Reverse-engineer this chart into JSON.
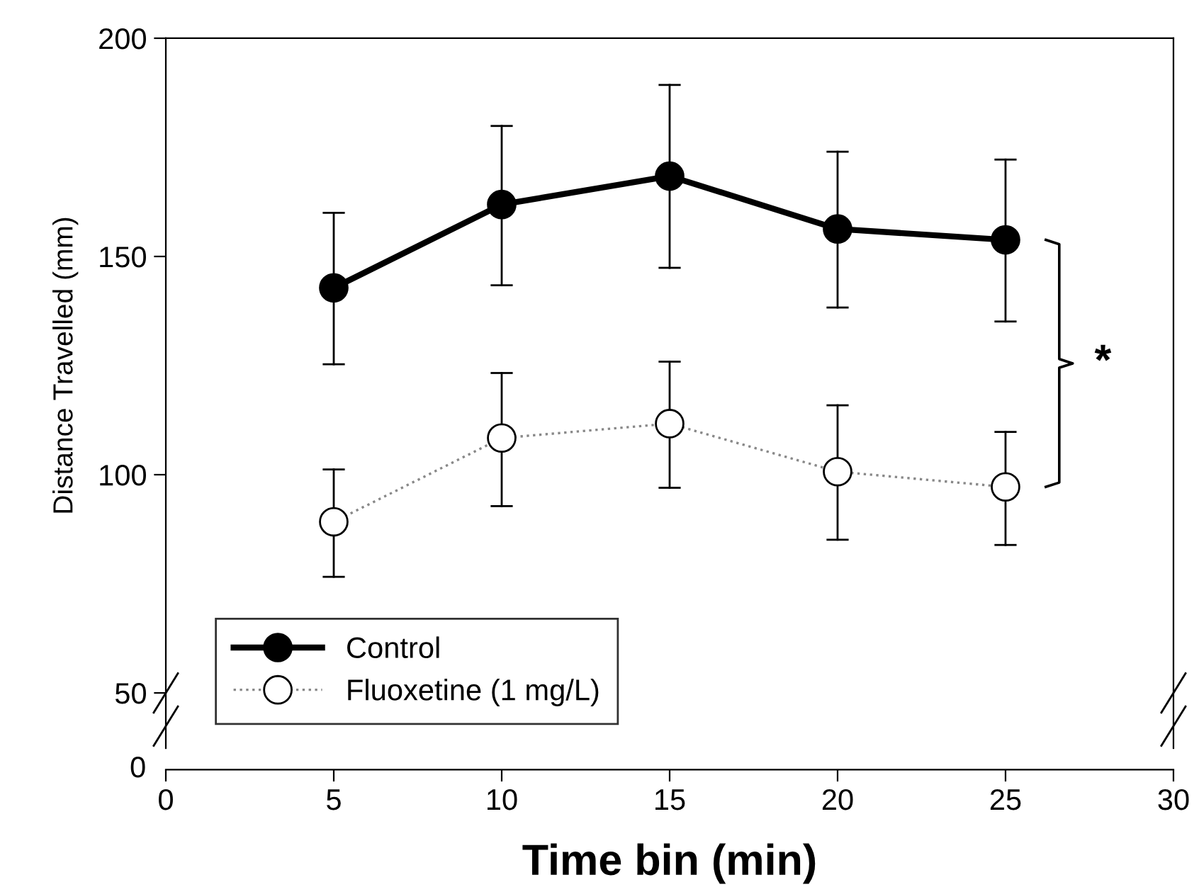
{
  "chart_data": {
    "type": "line",
    "ylabel": "Distance Travelled (mm)",
    "xlabel": "Time bin (min)",
    "x": [
      5,
      10,
      15,
      20,
      25
    ],
    "xlim": [
      0,
      30
    ],
    "xticks": [
      0,
      5,
      10,
      15,
      20,
      25,
      30
    ],
    "ylim": [
      50,
      200
    ],
    "yticks": [
      50,
      100,
      150,
      200
    ],
    "legend": "bottom left",
    "marker": "circle",
    "grid": false,
    "series": [
      {
        "name": "Control",
        "color": "#000000",
        "line_style": "solid",
        "values": [
          142.8,
          161.9,
          168.4,
          156.3,
          153.8
        ],
        "errors": [
          [
            125.3,
            160
          ],
          [
            143.4,
            179.9
          ],
          [
            147.4,
            189.3
          ],
          [
            138.3,
            174
          ],
          [
            135.1,
            172.2
          ]
        ]
      },
      {
        "name": "Fluoxetine (1 mg/L)",
        "color": "#ffffff",
        "line_style": "dotted",
        "values": [
          89.2,
          108.4,
          111.7,
          100.7,
          97.2
        ],
        "errors": [
          [
            76.6,
            101.2
          ],
          [
            92.8,
            123.3
          ],
          [
            97.0,
            125.9
          ],
          [
            85.1,
            115.9
          ],
          [
            83.9,
            109.8
          ]
        ]
      }
    ],
    "annotations": [
      "*",
      "0"
    ]
  }
}
